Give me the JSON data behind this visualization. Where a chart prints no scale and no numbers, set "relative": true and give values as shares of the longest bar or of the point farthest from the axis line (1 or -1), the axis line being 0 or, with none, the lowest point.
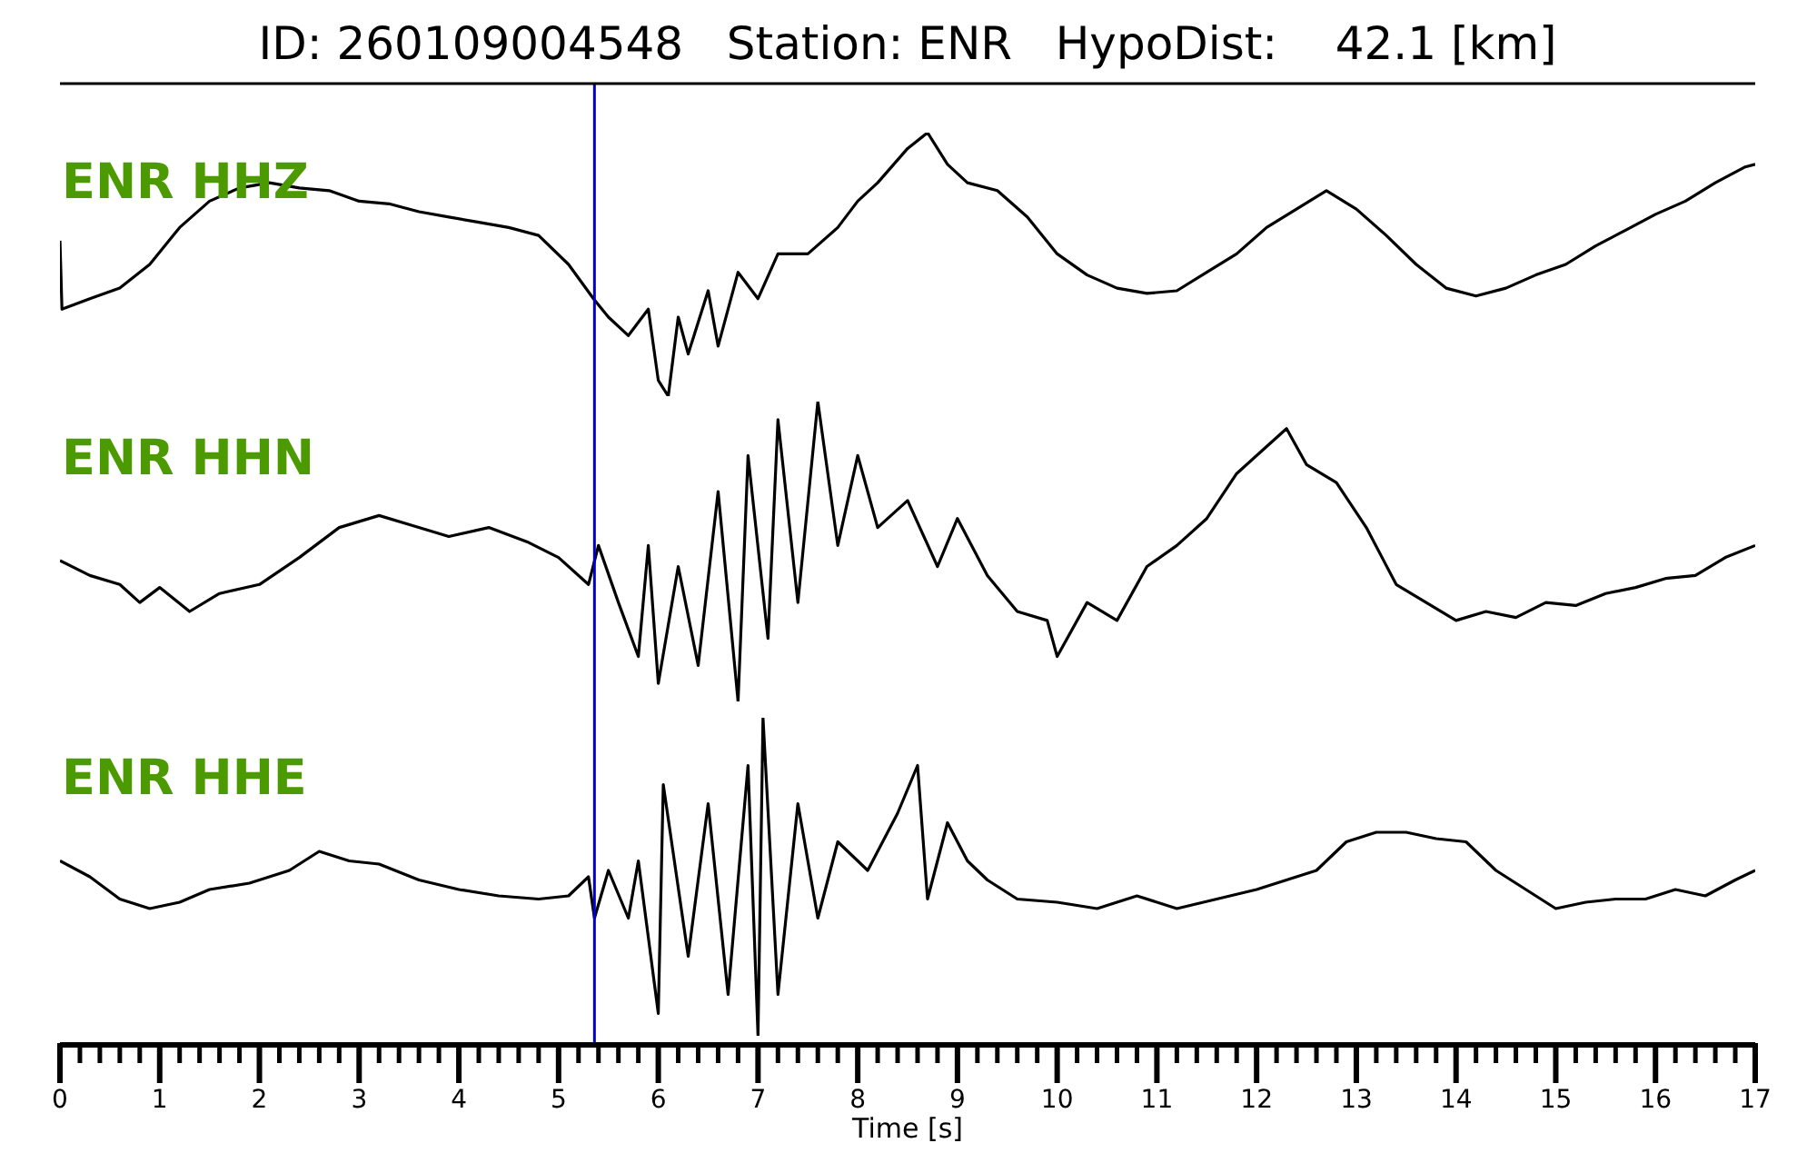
{
  "chart_data": [
    {
      "type": "line",
      "title": "ID: 260109004548   Station: ENR   HypoDist:    42.1 [km]",
      "relative": true,
      "tick_labels": false,
      "xlim": [
        0,
        17
      ],
      "marker": "none",
      "line_style": "solid",
      "x": [
        0,
        0.02,
        0.3,
        0.6,
        0.9,
        1.2,
        1.5,
        1.8,
        2.1,
        2.4,
        2.7,
        3.0,
        3.3,
        3.6,
        3.9,
        4.2,
        4.5,
        4.8,
        5.1,
        5.35,
        5.5,
        5.7,
        5.9,
        6.0,
        6.1,
        6.2,
        6.3,
        6.5,
        6.6,
        6.8,
        7.0,
        7.2,
        7.5,
        7.8,
        8.0,
        8.2,
        8.5,
        8.7,
        8.9,
        9.1,
        9.4,
        9.7,
        10.0,
        10.3,
        10.6,
        10.9,
        11.2,
        11.5,
        11.8,
        12.1,
        12.4,
        12.7,
        13.0,
        13.3,
        13.6,
        13.9,
        14.2,
        14.5,
        14.8,
        15.1,
        15.4,
        15.7,
        16.0,
        16.3,
        16.6,
        16.9,
        17
      ],
      "series": [
        {
          "name": "ENR HHZ",
          "color": "#000000",
          "values": [
            0.59,
            0.33,
            0.37,
            0.41,
            0.5,
            0.64,
            0.74,
            0.79,
            0.81,
            0.79,
            0.78,
            0.74,
            0.73,
            0.7,
            0.68,
            0.66,
            0.64,
            0.61,
            0.5,
            0.37,
            0.3,
            0.23,
            0.33,
            0.06,
            0,
            0.3,
            0.16,
            0.4,
            0.19,
            0.47,
            0.37,
            0.54,
            0.54,
            0.64,
            0.74,
            0.81,
            0.94,
            1,
            0.88,
            0.81,
            0.78,
            0.68,
            0.54,
            0.46,
            0.41,
            0.39,
            0.4,
            0.47,
            0.54,
            0.64,
            0.71,
            0.78,
            0.71,
            0.61,
            0.5,
            0.41,
            0.38,
            0.41,
            0.46,
            0.5,
            0.57,
            0.63,
            0.69,
            0.74,
            0.81,
            0.87,
            0.88
          ]
        }
      ],
      "ref_lines": [
        {
          "axis": "x",
          "value": 5.36,
          "color": "#0000cc"
        }
      ]
    },
    {
      "type": "line",
      "relative": true,
      "tick_labels": false,
      "xlim": [
        0,
        17
      ],
      "marker": "none",
      "line_style": "solid",
      "x": [
        0,
        0.3,
        0.6,
        0.8,
        1.0,
        1.3,
        1.6,
        2.0,
        2.4,
        2.8,
        3.2,
        3.5,
        3.9,
        4.3,
        4.7,
        5.0,
        5.3,
        5.4,
        5.6,
        5.8,
        5.9,
        6.0,
        6.2,
        6.4,
        6.6,
        6.8,
        6.9,
        7.1,
        7.2,
        7.4,
        7.6,
        7.8,
        8.0,
        8.2,
        8.5,
        8.8,
        9.0,
        9.3,
        9.6,
        9.9,
        10.0,
        10.3,
        10.6,
        10.9,
        11.2,
        11.5,
        11.8,
        12.1,
        12.3,
        12.5,
        12.8,
        13.1,
        13.4,
        13.7,
        14.0,
        14.3,
        14.6,
        14.9,
        15.2,
        15.5,
        15.8,
        16.1,
        16.4,
        16.7,
        17
      ],
      "series": [
        {
          "name": "ENR HHN",
          "color": "#000000",
          "values": [
            0.47,
            0.42,
            0.39,
            0.33,
            0.38,
            0.3,
            0.36,
            0.39,
            0.48,
            0.58,
            0.62,
            0.59,
            0.55,
            0.58,
            0.53,
            0.48,
            0.39,
            0.52,
            0.33,
            0.15,
            0.52,
            0.06,
            0.45,
            0.12,
            0.7,
            0,
            0.82,
            0.21,
            0.94,
            0.33,
            1,
            0.52,
            0.82,
            0.58,
            0.67,
            0.45,
            0.61,
            0.42,
            0.3,
            0.27,
            0.15,
            0.33,
            0.27,
            0.45,
            0.52,
            0.61,
            0.76,
            0.85,
            0.91,
            0.79,
            0.73,
            0.58,
            0.39,
            0.33,
            0.27,
            0.3,
            0.28,
            0.33,
            0.32,
            0.36,
            0.38,
            0.41,
            0.42,
            0.48,
            0.52
          ]
        }
      ],
      "ref_lines": [
        {
          "axis": "x",
          "value": 5.36,
          "color": "#0000cc"
        }
      ]
    },
    {
      "type": "line",
      "relative": true,
      "tick_labels": "x",
      "xlabel": "Time [s]",
      "xlim": [
        0,
        17
      ],
      "marker": "none",
      "line_style": "solid",
      "xticks": [
        0,
        {
          "value": 0.2,
          "label": null
        },
        {
          "value": 0.4,
          "label": null
        },
        {
          "value": 0.6,
          "label": null
        },
        {
          "value": 0.8,
          "label": null
        },
        1,
        {
          "value": 1.2,
          "label": null
        },
        {
          "value": 1.4,
          "label": null
        },
        {
          "value": 1.6,
          "label": null
        },
        {
          "value": 1.8,
          "label": null
        },
        2,
        {
          "value": 2.2,
          "label": null
        },
        {
          "value": 2.4,
          "label": null
        },
        {
          "value": 2.6,
          "label": null
        },
        {
          "value": 2.8,
          "label": null
        },
        3,
        {
          "value": 3.2,
          "label": null
        },
        {
          "value": 3.4,
          "label": null
        },
        {
          "value": 3.6,
          "label": null
        },
        {
          "value": 3.8,
          "label": null
        },
        4,
        {
          "value": 4.2,
          "label": null
        },
        {
          "value": 4.4,
          "label": null
        },
        {
          "value": 4.6,
          "label": null
        },
        {
          "value": 4.8,
          "label": null
        },
        5,
        {
          "value": 5.2,
          "label": null
        },
        {
          "value": 5.4,
          "label": null
        },
        {
          "value": 5.6,
          "label": null
        },
        {
          "value": 5.8,
          "label": null
        },
        6,
        {
          "value": 6.2,
          "label": null
        },
        {
          "value": 6.4,
          "label": null
        },
        {
          "value": 6.6,
          "label": null
        },
        {
          "value": 6.8,
          "label": null
        },
        7,
        {
          "value": 7.2,
          "label": null
        },
        {
          "value": 7.4,
          "label": null
        },
        {
          "value": 7.6,
          "label": null
        },
        {
          "value": 7.8,
          "label": null
        },
        8,
        {
          "value": 8.2,
          "label": null
        },
        {
          "value": 8.4,
          "label": null
        },
        {
          "value": 8.6,
          "label": null
        },
        {
          "value": 8.8,
          "label": null
        },
        9,
        {
          "value": 9.2,
          "label": null
        },
        {
          "value": 9.4,
          "label": null
        },
        {
          "value": 9.6,
          "label": null
        },
        {
          "value": 9.8,
          "label": null
        },
        10,
        {
          "value": 10.2,
          "label": null
        },
        {
          "value": 10.4,
          "label": null
        },
        {
          "value": 10.6,
          "label": null
        },
        {
          "value": 10.8,
          "label": null
        },
        11,
        {
          "value": 11.2,
          "label": null
        },
        {
          "value": 11.4,
          "label": null
        },
        {
          "value": 11.6,
          "label": null
        },
        {
          "value": 11.8,
          "label": null
        },
        12,
        {
          "value": 12.2,
          "label": null
        },
        {
          "value": 12.4,
          "label": null
        },
        {
          "value": 12.6,
          "label": null
        },
        {
          "value": 12.8,
          "label": null
        },
        13,
        {
          "value": 13.2,
          "label": null
        },
        {
          "value": 13.4,
          "label": null
        },
        {
          "value": 13.6,
          "label": null
        },
        {
          "value": 13.8,
          "label": null
        },
        14,
        {
          "value": 14.2,
          "label": null
        },
        {
          "value": 14.4,
          "label": null
        },
        {
          "value": 14.6,
          "label": null
        },
        {
          "value": 14.8,
          "label": null
        },
        15,
        {
          "value": 15.2,
          "label": null
        },
        {
          "value": 15.4,
          "label": null
        },
        {
          "value": 15.6,
          "label": null
        },
        {
          "value": 15.8,
          "label": null
        },
        16,
        {
          "value": 16.2,
          "label": null
        },
        {
          "value": 16.4,
          "label": null
        },
        {
          "value": 16.6,
          "label": null
        },
        {
          "value": 16.8,
          "label": null
        },
        17
      ],
      "x": [
        0,
        0.3,
        0.6,
        0.9,
        1.2,
        1.5,
        1.9,
        2.3,
        2.6,
        2.9,
        3.2,
        3.6,
        4.0,
        4.4,
        4.8,
        5.1,
        5.3,
        5.36,
        5.5,
        5.7,
        5.8,
        6.0,
        6.05,
        6.3,
        6.5,
        6.7,
        6.9,
        7.0,
        7.05,
        7.2,
        7.4,
        7.6,
        7.8,
        8.1,
        8.4,
        8.6,
        8.7,
        8.9,
        9.1,
        9.3,
        9.6,
        10.0,
        10.4,
        10.8,
        11.2,
        11.6,
        12.0,
        12.3,
        12.6,
        12.9,
        13.2,
        13.5,
        13.8,
        14.1,
        14.4,
        14.7,
        15.0,
        15.3,
        15.6,
        15.9,
        16.2,
        16.5,
        16.8,
        17
      ],
      "series": [
        {
          "name": "ENR HHE",
          "color": "#000000",
          "values": [
            0.55,
            0.5,
            0.43,
            0.4,
            0.42,
            0.46,
            0.48,
            0.52,
            0.58,
            0.55,
            0.54,
            0.49,
            0.46,
            0.44,
            0.43,
            0.44,
            0.5,
            0.37,
            0.52,
            0.37,
            0.55,
            0.07,
            0.79,
            0.25,
            0.73,
            0.13,
            0.85,
            0,
            1,
            0.13,
            0.73,
            0.37,
            0.61,
            0.52,
            0.7,
            0.85,
            0.43,
            0.67,
            0.55,
            0.49,
            0.43,
            0.42,
            0.4,
            0.44,
            0.4,
            0.43,
            0.46,
            0.49,
            0.52,
            0.61,
            0.64,
            0.64,
            0.62,
            0.61,
            0.52,
            0.46,
            0.4,
            0.42,
            0.43,
            0.43,
            0.46,
            0.44,
            0.49,
            0.52
          ]
        }
      ],
      "ref_lines": [
        {
          "axis": "x",
          "value": 5.36,
          "color": "#0000cc"
        }
      ]
    }
  ]
}
